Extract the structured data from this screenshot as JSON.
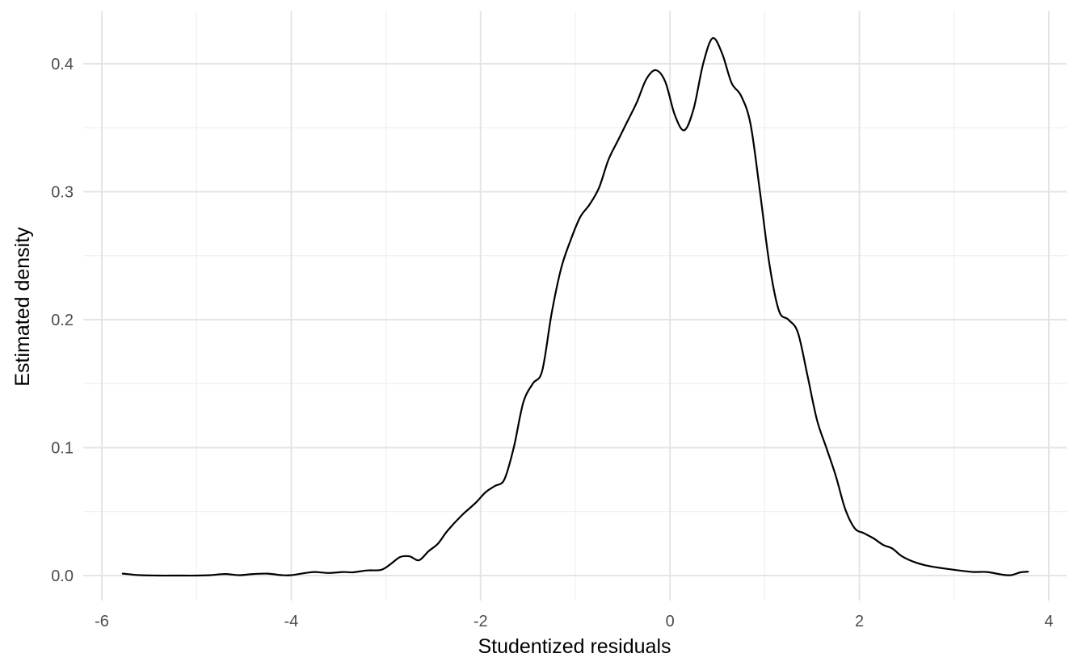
{
  "chart_data": {
    "type": "line",
    "title": "",
    "xlabel": "Studentized residuals",
    "ylabel": "Estimated density",
    "xlim": [
      -6,
      4
    ],
    "ylim": [
      0,
      0.4
    ],
    "x_ticks": [
      -6,
      -4,
      -2,
      0,
      2,
      4
    ],
    "x_tick_labels": [
      "-6",
      "-4",
      "-2",
      "0",
      "2",
      "4"
    ],
    "y_ticks": [
      0,
      0.1,
      0.2,
      0.3,
      0.4
    ],
    "y_tick_labels": [
      "0.0",
      "0.1",
      "0.2",
      "0.3",
      "0.4"
    ],
    "grid": true,
    "legend": "none",
    "series": [
      {
        "color": "#000000",
        "points": [
          [
            -5.78,
            0.0015
          ],
          [
            -5.6,
            0.0003
          ],
          [
            -5.4,
            0.0
          ],
          [
            -5.2,
            0.0
          ],
          [
            -5.0,
            0.0
          ],
          [
            -4.85,
            0.0003
          ],
          [
            -4.7,
            0.0012
          ],
          [
            -4.55,
            0.0003
          ],
          [
            -4.4,
            0.0012
          ],
          [
            -4.25,
            0.0015
          ],
          [
            -4.1,
            0.0003
          ],
          [
            -4.0,
            0.0003
          ],
          [
            -3.85,
            0.002
          ],
          [
            -3.75,
            0.0028
          ],
          [
            -3.6,
            0.002
          ],
          [
            -3.45,
            0.0028
          ],
          [
            -3.35,
            0.0025
          ],
          [
            -3.2,
            0.004
          ],
          [
            -3.05,
            0.0045
          ],
          [
            -2.95,
            0.009
          ],
          [
            -2.85,
            0.0145
          ],
          [
            -2.75,
            0.015
          ],
          [
            -2.65,
            0.012
          ],
          [
            -2.55,
            0.019
          ],
          [
            -2.45,
            0.025
          ],
          [
            -2.35,
            0.035
          ],
          [
            -2.2,
            0.047
          ],
          [
            -2.05,
            0.057
          ],
          [
            -1.95,
            0.065
          ],
          [
            -1.85,
            0.07
          ],
          [
            -1.75,
            0.075
          ],
          [
            -1.65,
            0.1
          ],
          [
            -1.55,
            0.135
          ],
          [
            -1.45,
            0.15
          ],
          [
            -1.35,
            0.16
          ],
          [
            -1.25,
            0.205
          ],
          [
            -1.15,
            0.24
          ],
          [
            -1.05,
            0.262
          ],
          [
            -0.95,
            0.28
          ],
          [
            -0.85,
            0.29
          ],
          [
            -0.75,
            0.303
          ],
          [
            -0.65,
            0.325
          ],
          [
            -0.55,
            0.34
          ],
          [
            -0.45,
            0.355
          ],
          [
            -0.35,
            0.37
          ],
          [
            -0.25,
            0.388
          ],
          [
            -0.15,
            0.395
          ],
          [
            -0.05,
            0.386
          ],
          [
            0.05,
            0.36
          ],
          [
            0.15,
            0.348
          ],
          [
            0.25,
            0.365
          ],
          [
            0.35,
            0.4
          ],
          [
            0.45,
            0.42
          ],
          [
            0.55,
            0.408
          ],
          [
            0.65,
            0.385
          ],
          [
            0.75,
            0.375
          ],
          [
            0.85,
            0.353
          ],
          [
            0.95,
            0.3
          ],
          [
            1.05,
            0.243
          ],
          [
            1.15,
            0.207
          ],
          [
            1.25,
            0.2
          ],
          [
            1.35,
            0.19
          ],
          [
            1.45,
            0.157
          ],
          [
            1.55,
            0.122
          ],
          [
            1.65,
            0.1
          ],
          [
            1.75,
            0.078
          ],
          [
            1.85,
            0.052
          ],
          [
            1.95,
            0.037
          ],
          [
            2.05,
            0.033
          ],
          [
            2.15,
            0.029
          ],
          [
            2.25,
            0.024
          ],
          [
            2.35,
            0.021
          ],
          [
            2.45,
            0.015
          ],
          [
            2.6,
            0.01
          ],
          [
            2.75,
            0.0072
          ],
          [
            2.9,
            0.0055
          ],
          [
            3.05,
            0.004
          ],
          [
            3.2,
            0.0028
          ],
          [
            3.35,
            0.0028
          ],
          [
            3.5,
            0.0008
          ],
          [
            3.6,
            0.0003
          ],
          [
            3.7,
            0.0025
          ],
          [
            3.78,
            0.003
          ]
        ]
      }
    ]
  }
}
